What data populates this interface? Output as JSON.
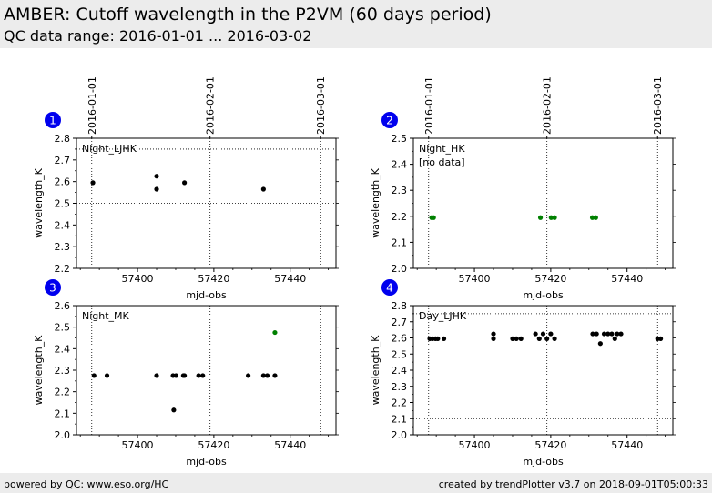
{
  "header": {
    "title": "AMBER: Cutoff wavelength in the P2VM (60 days period)",
    "subtitle": "QC data range: 2016-01-01 ... 2016-03-02"
  },
  "footer": {
    "left": "powered by QC: www.eso.org/HC",
    "right": "created by trendPlotter v3.7 on 2018-09-01T05:00:33"
  },
  "colors": {
    "normal": "#000000",
    "highlight": "#008000",
    "badge": "#0000ee",
    "header_bg": "#ececec"
  },
  "date_markers": [
    {
      "label": "2016-01-01",
      "mjd": 57388.0
    },
    {
      "label": "2016-02-01",
      "mjd": 57419.0
    },
    {
      "label": "2016-03-01",
      "mjd": 57448.0
    }
  ],
  "chart_data": [
    {
      "type": "scatter",
      "panel": "1",
      "label": "Night_LJHK",
      "no_data_text": "",
      "xlabel": "mjd-obs",
      "ylabel": "wavelength_K",
      "xlim": [
        57384,
        57452
      ],
      "ylim": [
        2.2,
        2.8
      ],
      "xticks": [
        57400,
        57420,
        57440
      ],
      "yticks": [
        2.2,
        2.3,
        2.4,
        2.5,
        2.6,
        2.7,
        2.8
      ],
      "hlines": [
        2.5,
        2.75
      ],
      "series": [
        {
          "color": "#000000",
          "x": [
            57388.3,
            57405.0,
            57405.0,
            57412.3,
            57433.0
          ],
          "y": [
            2.595,
            2.625,
            2.565,
            2.595,
            2.565
          ]
        }
      ]
    },
    {
      "type": "scatter",
      "panel": "2",
      "label": "Night_HK",
      "no_data_text": "[no data]",
      "xlabel": "mjd-obs",
      "ylabel": "wavelength_K",
      "xlim": [
        57384,
        57452
      ],
      "ylim": [
        2.0,
        2.5
      ],
      "xticks": [
        57400,
        57420,
        57440
      ],
      "yticks": [
        2.0,
        2.1,
        2.2,
        2.3,
        2.4,
        2.5
      ],
      "hlines": [],
      "series": [
        {
          "color": "#008000",
          "x": [
            57388.8,
            57389.3,
            57417.3,
            57420.1,
            57421.0,
            57430.9,
            57431.8
          ],
          "y": [
            2.195,
            2.195,
            2.195,
            2.195,
            2.195,
            2.195,
            2.195
          ]
        }
      ]
    },
    {
      "type": "scatter",
      "panel": "3",
      "label": "Night_MK",
      "no_data_text": "",
      "xlabel": "mjd-obs",
      "ylabel": "wavelength_K",
      "xlim": [
        57384,
        57452
      ],
      "ylim": [
        2.0,
        2.6
      ],
      "xticks": [
        57400,
        57420,
        57440
      ],
      "yticks": [
        2.0,
        2.1,
        2.2,
        2.3,
        2.4,
        2.5,
        2.6
      ],
      "hlines": [],
      "series": [
        {
          "color": "#000000",
          "x": [
            57388.6,
            57392.0,
            57405.0,
            57409.3,
            57410.1,
            57409.5,
            57412.0,
            57412.3,
            57416.0,
            57417.1,
            57429.0,
            57433.0,
            57434.0,
            57436.0
          ],
          "y": [
            2.275,
            2.275,
            2.275,
            2.275,
            2.275,
            2.115,
            2.275,
            2.275,
            2.275,
            2.275,
            2.275,
            2.275,
            2.275,
            2.275
          ]
        },
        {
          "color": "#008000",
          "x": [
            57436.0
          ],
          "y": [
            2.475
          ]
        }
      ]
    },
    {
      "type": "scatter",
      "panel": "4",
      "label": "Day_LJHK",
      "no_data_text": "",
      "xlabel": "mjd-obs",
      "ylabel": "wavelength_K",
      "xlim": [
        57384,
        57452
      ],
      "ylim": [
        2.0,
        2.8
      ],
      "xticks": [
        57400,
        57420,
        57440
      ],
      "yticks": [
        2.0,
        2.1,
        2.2,
        2.3,
        2.4,
        2.5,
        2.6,
        2.7,
        2.8
      ],
      "hlines": [
        2.1,
        2.75
      ],
      "series": [
        {
          "color": "#000000",
          "x": [
            57388.3,
            57389.0,
            57389.8,
            57390.4,
            57392.0,
            57405.0,
            57405.0,
            57410.0,
            57411.0,
            57412.2,
            57416.0,
            57417.0,
            57418.0,
            57419.0,
            57420.0,
            57421.0,
            57431.0,
            57432.0,
            57433.0,
            57434.0,
            57435.0,
            57436.0,
            57436.8,
            57437.4,
            57438.4,
            57448.0,
            57448.8
          ],
          "y": [
            2.595,
            2.595,
            2.595,
            2.595,
            2.595,
            2.625,
            2.595,
            2.595,
            2.595,
            2.595,
            2.625,
            2.595,
            2.625,
            2.595,
            2.625,
            2.595,
            2.625,
            2.625,
            2.565,
            2.625,
            2.625,
            2.625,
            2.595,
            2.625,
            2.625,
            2.595,
            2.595
          ]
        }
      ]
    }
  ]
}
